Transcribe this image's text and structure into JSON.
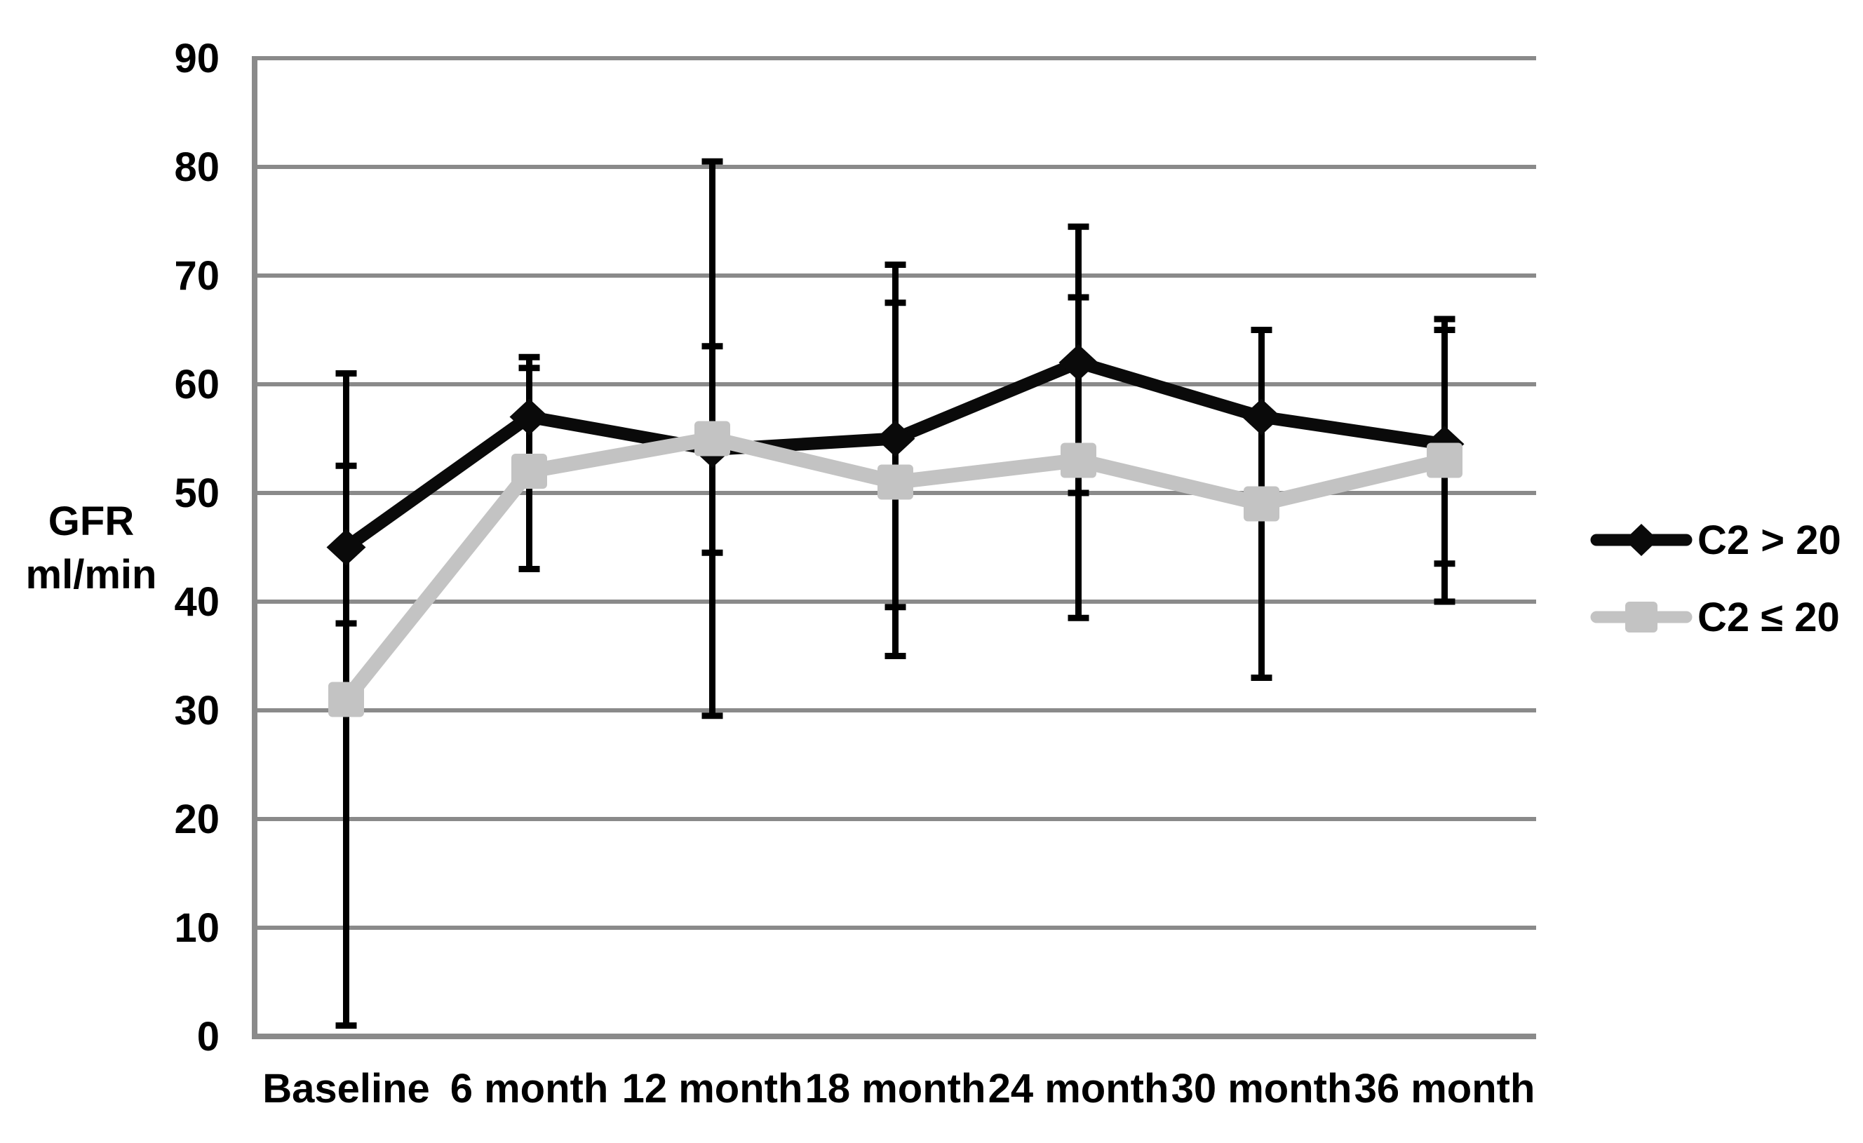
{
  "page": {
    "background": "#ffffff"
  },
  "chart_data": {
    "type": "line",
    "title": "",
    "ylabel_lines": [
      "GFR",
      "ml/min"
    ],
    "xlabel": "",
    "categories": [
      "Baseline",
      "6 month",
      "12 month",
      "18 month",
      "24 month",
      "30 month",
      "36 month"
    ],
    "ylim": [
      0,
      90
    ],
    "yticks": [
      0,
      10,
      20,
      30,
      40,
      50,
      60,
      70,
      80,
      90
    ],
    "grid": true,
    "legend_position": "middle-right",
    "colors": {
      "grid": "#8a8a8a",
      "axis": "#8a8a8a",
      "text": "#000000",
      "error_bar": "#000000",
      "background": "#ffffff"
    },
    "series": [
      {
        "name": "C2 > 20",
        "marker": "diamond",
        "color": "#0a0a0a",
        "values": [
          45,
          57,
          54,
          55,
          62,
          57,
          54.5
        ],
        "whisker_low": [
          38,
          52.5,
          44.5,
          39.5,
          50,
          49.5,
          43.5
        ],
        "whisker_high": [
          52.5,
          62.5,
          63.5,
          71,
          74.5,
          65,
          66
        ]
      },
      {
        "name": "C2 ≤ 20",
        "marker": "square",
        "color": "#c3c3c3",
        "values": [
          31,
          52,
          55,
          51,
          53,
          49,
          53
        ],
        "whisker_low": [
          1,
          43,
          29.5,
          35,
          38.5,
          33,
          40
        ],
        "whisker_high": [
          61,
          61.5,
          80.5,
          67.5,
          68,
          65,
          65
        ]
      }
    ]
  }
}
